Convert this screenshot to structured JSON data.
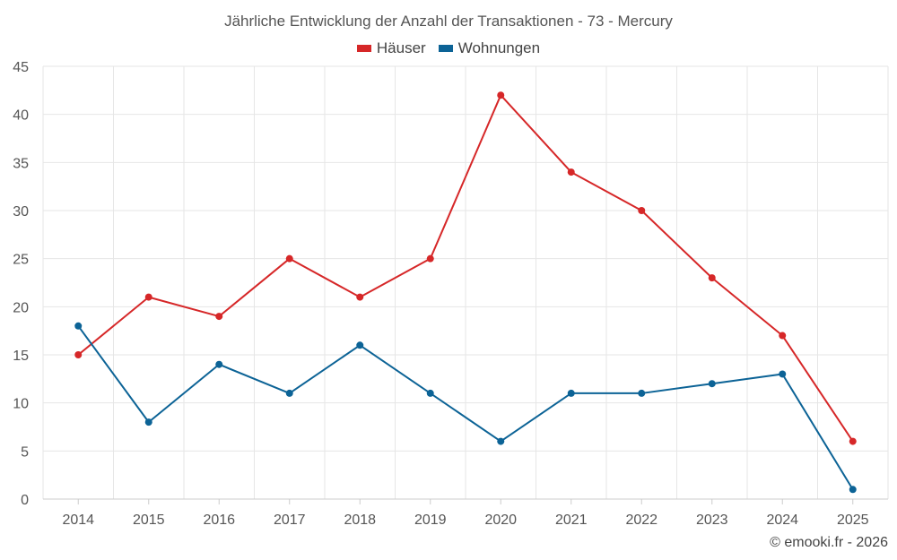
{
  "chart_data": {
    "type": "line",
    "title": "Jährliche Entwicklung der Anzahl der Transaktionen - 73 - Mercury",
    "categories": [
      "2014",
      "2015",
      "2016",
      "2017",
      "2018",
      "2019",
      "2020",
      "2021",
      "2022",
      "2023",
      "2024",
      "2025"
    ],
    "series": [
      {
        "name": "Häuser",
        "color": "#d62728",
        "values": [
          15,
          21,
          19,
          25,
          21,
          25,
          42,
          34,
          30,
          23,
          17,
          6
        ]
      },
      {
        "name": "Wohnungen",
        "color": "#0c6396",
        "values": [
          18,
          8,
          14,
          11,
          16,
          11,
          6,
          11,
          11,
          12,
          13,
          1
        ]
      }
    ],
    "yticks": [
      0,
      5,
      10,
      15,
      20,
      25,
      30,
      35,
      40,
      45
    ],
    "ylim": [
      0,
      45
    ],
    "xlabel": "",
    "ylabel": "",
    "grid": true,
    "legend": "top-center"
  },
  "credit": "© emooki.fr - 2026"
}
